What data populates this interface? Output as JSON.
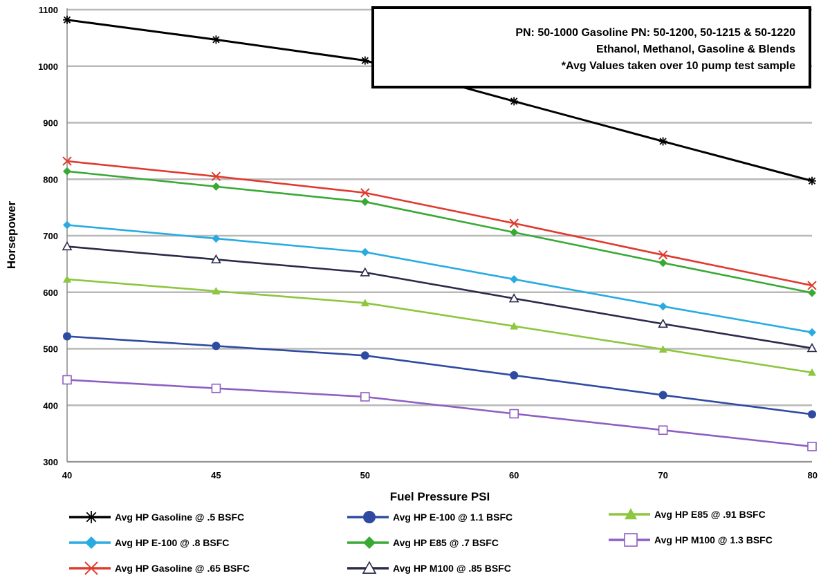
{
  "chart_data": {
    "type": "line",
    "xlabel": "Fuel Pressure PSI",
    "ylabel": "Horsepower",
    "x": [
      "40",
      "45",
      "50",
      "60",
      "70",
      "80"
    ],
    "ylim": [
      300,
      1100
    ],
    "yticks": [
      "300",
      "400",
      "500",
      "600",
      "700",
      "800",
      "900",
      "1000",
      "1100"
    ],
    "grid": true,
    "annotation": [
      "PN: 50-1000 Gasoline  PN: 50-1200, 50-1215 & 50-1220",
      "Ethanol, Methanol, Gasoline & Blends",
      "*Avg Values taken over 10 pump test sample"
    ],
    "series": [
      {
        "name": "Avg HP Gasoline @ .5 BSFC",
        "color": "#000000",
        "marker": "star",
        "values": [
          1082,
          1047,
          1010,
          938,
          867,
          797
        ]
      },
      {
        "name": "Avg HP E-100 @ 1.1 BSFC",
        "color": "#2E4BA1",
        "marker": "circle",
        "values": [
          522,
          505,
          488,
          453,
          418,
          384
        ]
      },
      {
        "name": "Avg HP E85 @ .91 BSFC",
        "color": "#8DC63F",
        "marker": "triangle-filled",
        "values": [
          623,
          602,
          581,
          540,
          499,
          458
        ]
      },
      {
        "name": "Avg HP E-100 @ .8 BSFC",
        "color": "#29ABE2",
        "marker": "diamond",
        "values": [
          719,
          695,
          671,
          623,
          575,
          529
        ]
      },
      {
        "name": "Avg HP E85 @ .7 BSFC",
        "color": "#39A935",
        "marker": "diamond",
        "values": [
          814,
          787,
          760,
          706,
          652,
          599
        ]
      },
      {
        "name": "Avg HP M100 @ 1.3 BSFC",
        "color": "#8E5FC2",
        "marker": "square-open",
        "values": [
          445,
          430,
          415,
          385,
          356,
          327
        ]
      },
      {
        "name": "Avg HP Gasoline @ .65 BSFC",
        "color": "#E03A2F",
        "marker": "x",
        "values": [
          832,
          805,
          776,
          722,
          666,
          612
        ]
      },
      {
        "name": "Avg HP M100 @ .85 BSFC",
        "color": "#2A2A4A",
        "marker": "triangle-open",
        "values": [
          681,
          658,
          635,
          589,
          544,
          501
        ]
      }
    ]
  }
}
